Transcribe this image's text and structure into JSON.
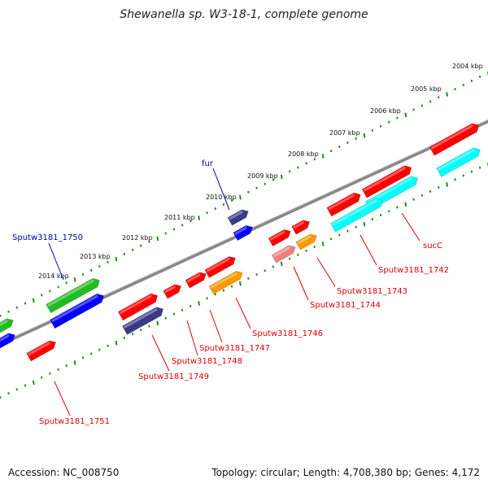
{
  "title": "Shewanella sp. W3-18-1, complete genome",
  "footer": {
    "accession": "Accession: NC_008750",
    "stats": "Topology: circular; Length: 4,708,380 bp; Genes: 4,172"
  },
  "colors": {
    "backbone": "#888888",
    "ticks": "#228b22",
    "label_red": "#dd0000",
    "label_blue": "#0000aa",
    "red": "#ff0000",
    "blue": "#0000ff",
    "darkblue": "#3a3a88",
    "green": "#22bb22",
    "cyan": "#00ffff",
    "orange": "#ff9900",
    "pink": "#f08080"
  },
  "kbp_labels": [
    "2004 kbp",
    "2005 kbp",
    "2006 kbp",
    "2007 kbp",
    "2008 kbp",
    "2009 kbp",
    "2010 kbp",
    "2011 kbp",
    "2012 kbp",
    "2013 kbp",
    "2014 kbp"
  ],
  "gene_labels": [
    {
      "name": "sucC",
      "color": "red"
    },
    {
      "name": "Sputw3181_1742",
      "color": "red"
    },
    {
      "name": "Sputw3181_1743",
      "color": "red"
    },
    {
      "name": "Sputw3181_1744",
      "color": "red"
    },
    {
      "name": "Sputw3181_1746",
      "color": "red"
    },
    {
      "name": "Sputw3181_1747",
      "color": "red"
    },
    {
      "name": "Sputw3181_1748",
      "color": "red"
    },
    {
      "name": "Sputw3181_1749",
      "color": "red"
    },
    {
      "name": "Sputw3181_1751",
      "color": "red"
    },
    {
      "name": "fur",
      "color": "blue"
    },
    {
      "name": "Sputw3181_1750",
      "color": "blue"
    }
  ],
  "features": [
    {
      "id": "sucC",
      "color": "red"
    },
    {
      "id": "1742",
      "color": "red"
    },
    {
      "id": "1742b",
      "color": "red"
    },
    {
      "id": "cyan1",
      "color": "cyan"
    },
    {
      "id": "cyan2",
      "color": "cyan"
    },
    {
      "id": "cyan3",
      "color": "cyan"
    },
    {
      "id": "1743",
      "color": "orange"
    },
    {
      "id": "1743r",
      "color": "red"
    },
    {
      "id": "1744r",
      "color": "red"
    },
    {
      "id": "1744",
      "color": "pink"
    },
    {
      "id": "1746",
      "color": "orange"
    },
    {
      "id": "1746r",
      "color": "red"
    },
    {
      "id": "1747",
      "color": "red"
    },
    {
      "id": "1748",
      "color": "red"
    },
    {
      "id": "1749",
      "color": "darkblue"
    },
    {
      "id": "1749r",
      "color": "red"
    },
    {
      "id": "1751",
      "color": "red"
    },
    {
      "id": "fur",
      "color": "darkblue"
    },
    {
      "id": "furb",
      "color": "blue"
    },
    {
      "id": "1750",
      "color": "green"
    },
    {
      "id": "1750b",
      "color": "blue"
    },
    {
      "id": "leftgreen",
      "color": "green"
    },
    {
      "id": "leftblue",
      "color": "blue"
    }
  ]
}
